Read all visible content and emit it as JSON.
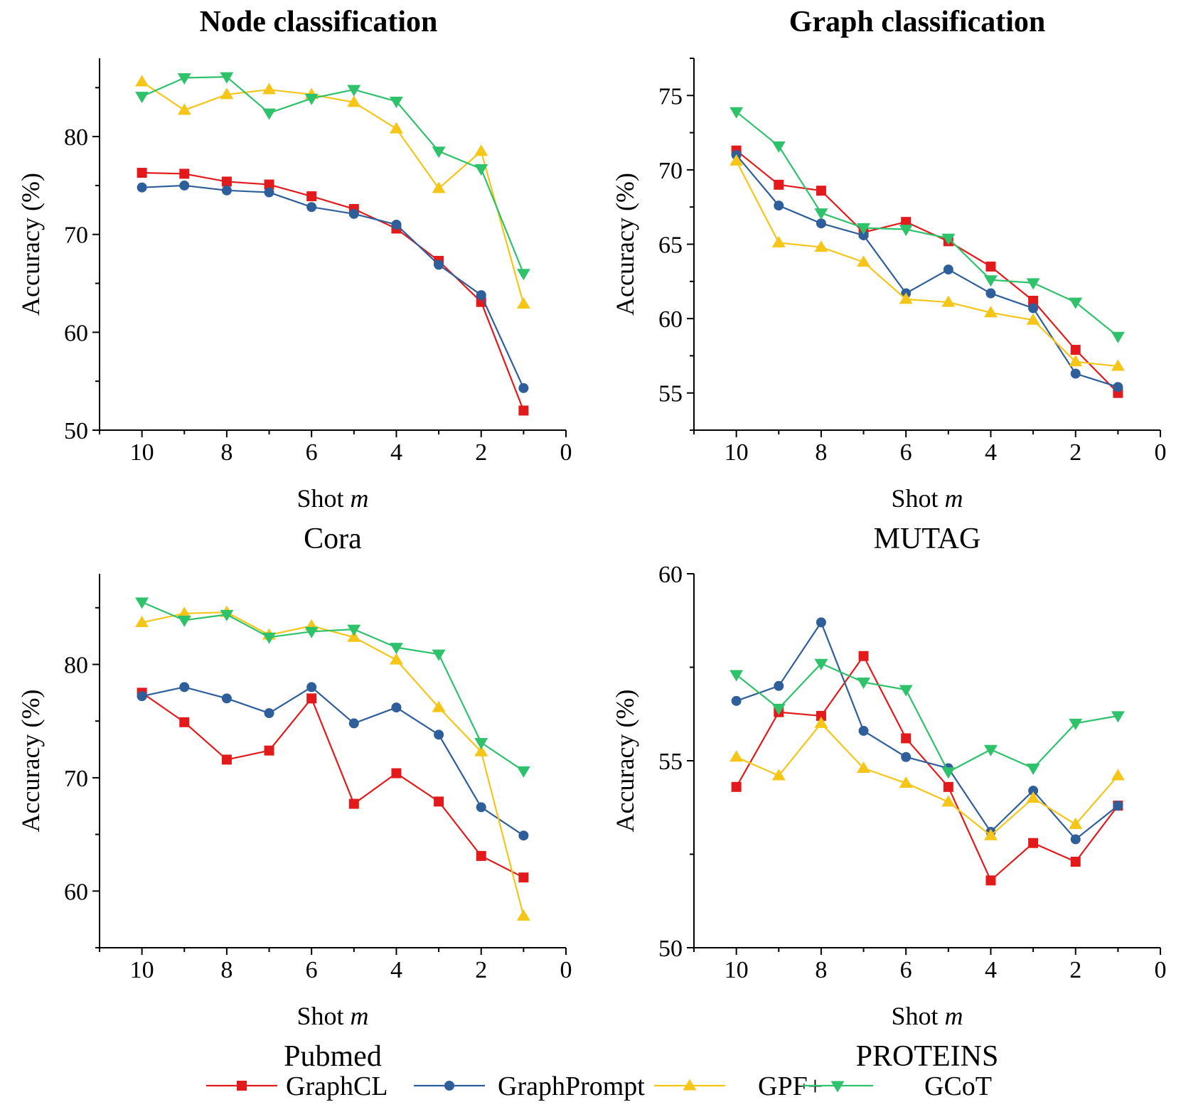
{
  "column_headers": [
    "Node classification",
    "Graph classification"
  ],
  "legend": [
    {
      "label": "GraphCL",
      "color": "#e31a1c",
      "marker": "square"
    },
    {
      "label": "GraphPrompt",
      "color": "#2f5f9a",
      "marker": "circle"
    },
    {
      "label": "GPF+",
      "color": "#f5c518",
      "marker": "triangle-up"
    },
    {
      "label": "GCoT",
      "color": "#2ec26b",
      "marker": "triangle-down"
    }
  ],
  "chart_data": [
    {
      "type": "line",
      "title": "Cora",
      "xlabel": "Shot m",
      "ylabel": "Accuracy (%)",
      "xlim": [
        11,
        0
      ],
      "ylim": [
        50,
        88
      ],
      "xticks": [
        10,
        8,
        6,
        4,
        2,
        0
      ],
      "yticks": [
        50,
        60,
        70,
        80
      ],
      "x": [
        10,
        9,
        8,
        7,
        6,
        5,
        4,
        3,
        2,
        1
      ],
      "series": [
        {
          "name": "GraphCL",
          "values": [
            76.3,
            76.2,
            75.4,
            75.1,
            73.9,
            72.6,
            70.6,
            67.3,
            63.1,
            52.0
          ]
        },
        {
          "name": "GraphPrompt",
          "values": [
            74.8,
            75.0,
            74.5,
            74.3,
            72.8,
            72.1,
            71.0,
            66.9,
            63.8,
            54.3
          ]
        },
        {
          "name": "GPF+",
          "values": [
            85.6,
            82.7,
            84.3,
            84.8,
            84.3,
            83.5,
            80.8,
            74.7,
            78.5,
            62.9
          ]
        },
        {
          "name": "GCoT",
          "values": [
            84.1,
            86.0,
            86.1,
            82.4,
            83.9,
            84.8,
            83.6,
            78.5,
            76.7,
            66.0
          ]
        }
      ]
    },
    {
      "type": "line",
      "title": "MUTAG",
      "xlabel": "Shot m",
      "ylabel": "Accuracy (%)",
      "xlim": [
        11,
        0
      ],
      "ylim": [
        52.5,
        77.5
      ],
      "xticks": [
        10,
        8,
        6,
        4,
        2,
        0
      ],
      "yticks": [
        55,
        60,
        65,
        70,
        75
      ],
      "x": [
        10,
        9,
        8,
        7,
        6,
        5,
        4,
        3,
        2,
        1
      ],
      "series": [
        {
          "name": "GraphCL",
          "values": [
            71.3,
            69.0,
            68.6,
            65.8,
            66.5,
            65.2,
            63.5,
            61.2,
            57.9,
            55.0
          ]
        },
        {
          "name": "GraphPrompt",
          "values": [
            71.0,
            67.6,
            66.4,
            65.6,
            61.7,
            63.3,
            61.7,
            60.7,
            56.3,
            55.4
          ]
        },
        {
          "name": "GPF+",
          "values": [
            70.6,
            65.1,
            64.8,
            63.8,
            61.3,
            61.1,
            60.4,
            59.9,
            57.1,
            56.8
          ]
        },
        {
          "name": "GCoT",
          "values": [
            73.9,
            71.6,
            67.1,
            66.1,
            66.0,
            65.4,
            62.6,
            62.4,
            61.1,
            58.8
          ]
        }
      ]
    },
    {
      "type": "line",
      "title": "Pubmed",
      "xlabel": "Shot m",
      "ylabel": "Accuracy (%)",
      "xlim": [
        11,
        0
      ],
      "ylim": [
        55,
        88
      ],
      "xticks": [
        10,
        8,
        6,
        4,
        2,
        0
      ],
      "yticks": [
        60,
        70,
        80
      ],
      "x": [
        10,
        9,
        8,
        7,
        6,
        5,
        4,
        3,
        2,
        1
      ],
      "series": [
        {
          "name": "GraphCL",
          "values": [
            77.5,
            74.9,
            71.6,
            72.4,
            77.0,
            67.7,
            70.4,
            67.9,
            63.1,
            61.2
          ]
        },
        {
          "name": "GraphPrompt",
          "values": [
            77.2,
            78.0,
            77.0,
            75.7,
            78.0,
            74.8,
            76.2,
            73.8,
            67.4,
            64.9
          ]
        },
        {
          "name": "GPF+",
          "values": [
            83.7,
            84.5,
            84.6,
            82.6,
            83.4,
            82.4,
            80.4,
            76.2,
            72.3,
            57.8
          ]
        },
        {
          "name": "GCoT",
          "values": [
            85.5,
            83.9,
            84.4,
            82.4,
            82.9,
            83.1,
            81.5,
            80.9,
            73.1,
            70.6
          ]
        }
      ]
    },
    {
      "type": "line",
      "title": "PROTEINS",
      "xlabel": "Shot m",
      "ylabel": "Accuracy (%)",
      "xlim": [
        11,
        0
      ],
      "ylim": [
        50,
        60
      ],
      "xticks": [
        10,
        8,
        6,
        4,
        2,
        0
      ],
      "yticks": [
        50,
        55,
        60
      ],
      "x": [
        10,
        9,
        8,
        7,
        6,
        5,
        4,
        3,
        2,
        1
      ],
      "series": [
        {
          "name": "GraphCL",
          "values": [
            54.3,
            56.3,
            56.2,
            57.8,
            55.6,
            54.3,
            51.8,
            52.8,
            52.3,
            53.8
          ]
        },
        {
          "name": "GraphPrompt",
          "values": [
            56.6,
            57.0,
            58.7,
            55.8,
            55.1,
            54.8,
            53.1,
            54.2,
            52.9,
            53.8
          ]
        },
        {
          "name": "GPF+",
          "values": [
            55.1,
            54.6,
            56.0,
            54.8,
            54.4,
            53.9,
            53.0,
            54.0,
            53.3,
            54.6
          ]
        },
        {
          "name": "GCoT",
          "values": [
            57.3,
            56.4,
            57.6,
            57.1,
            56.9,
            54.7,
            55.3,
            54.8,
            56.0,
            56.2
          ]
        }
      ]
    }
  ]
}
